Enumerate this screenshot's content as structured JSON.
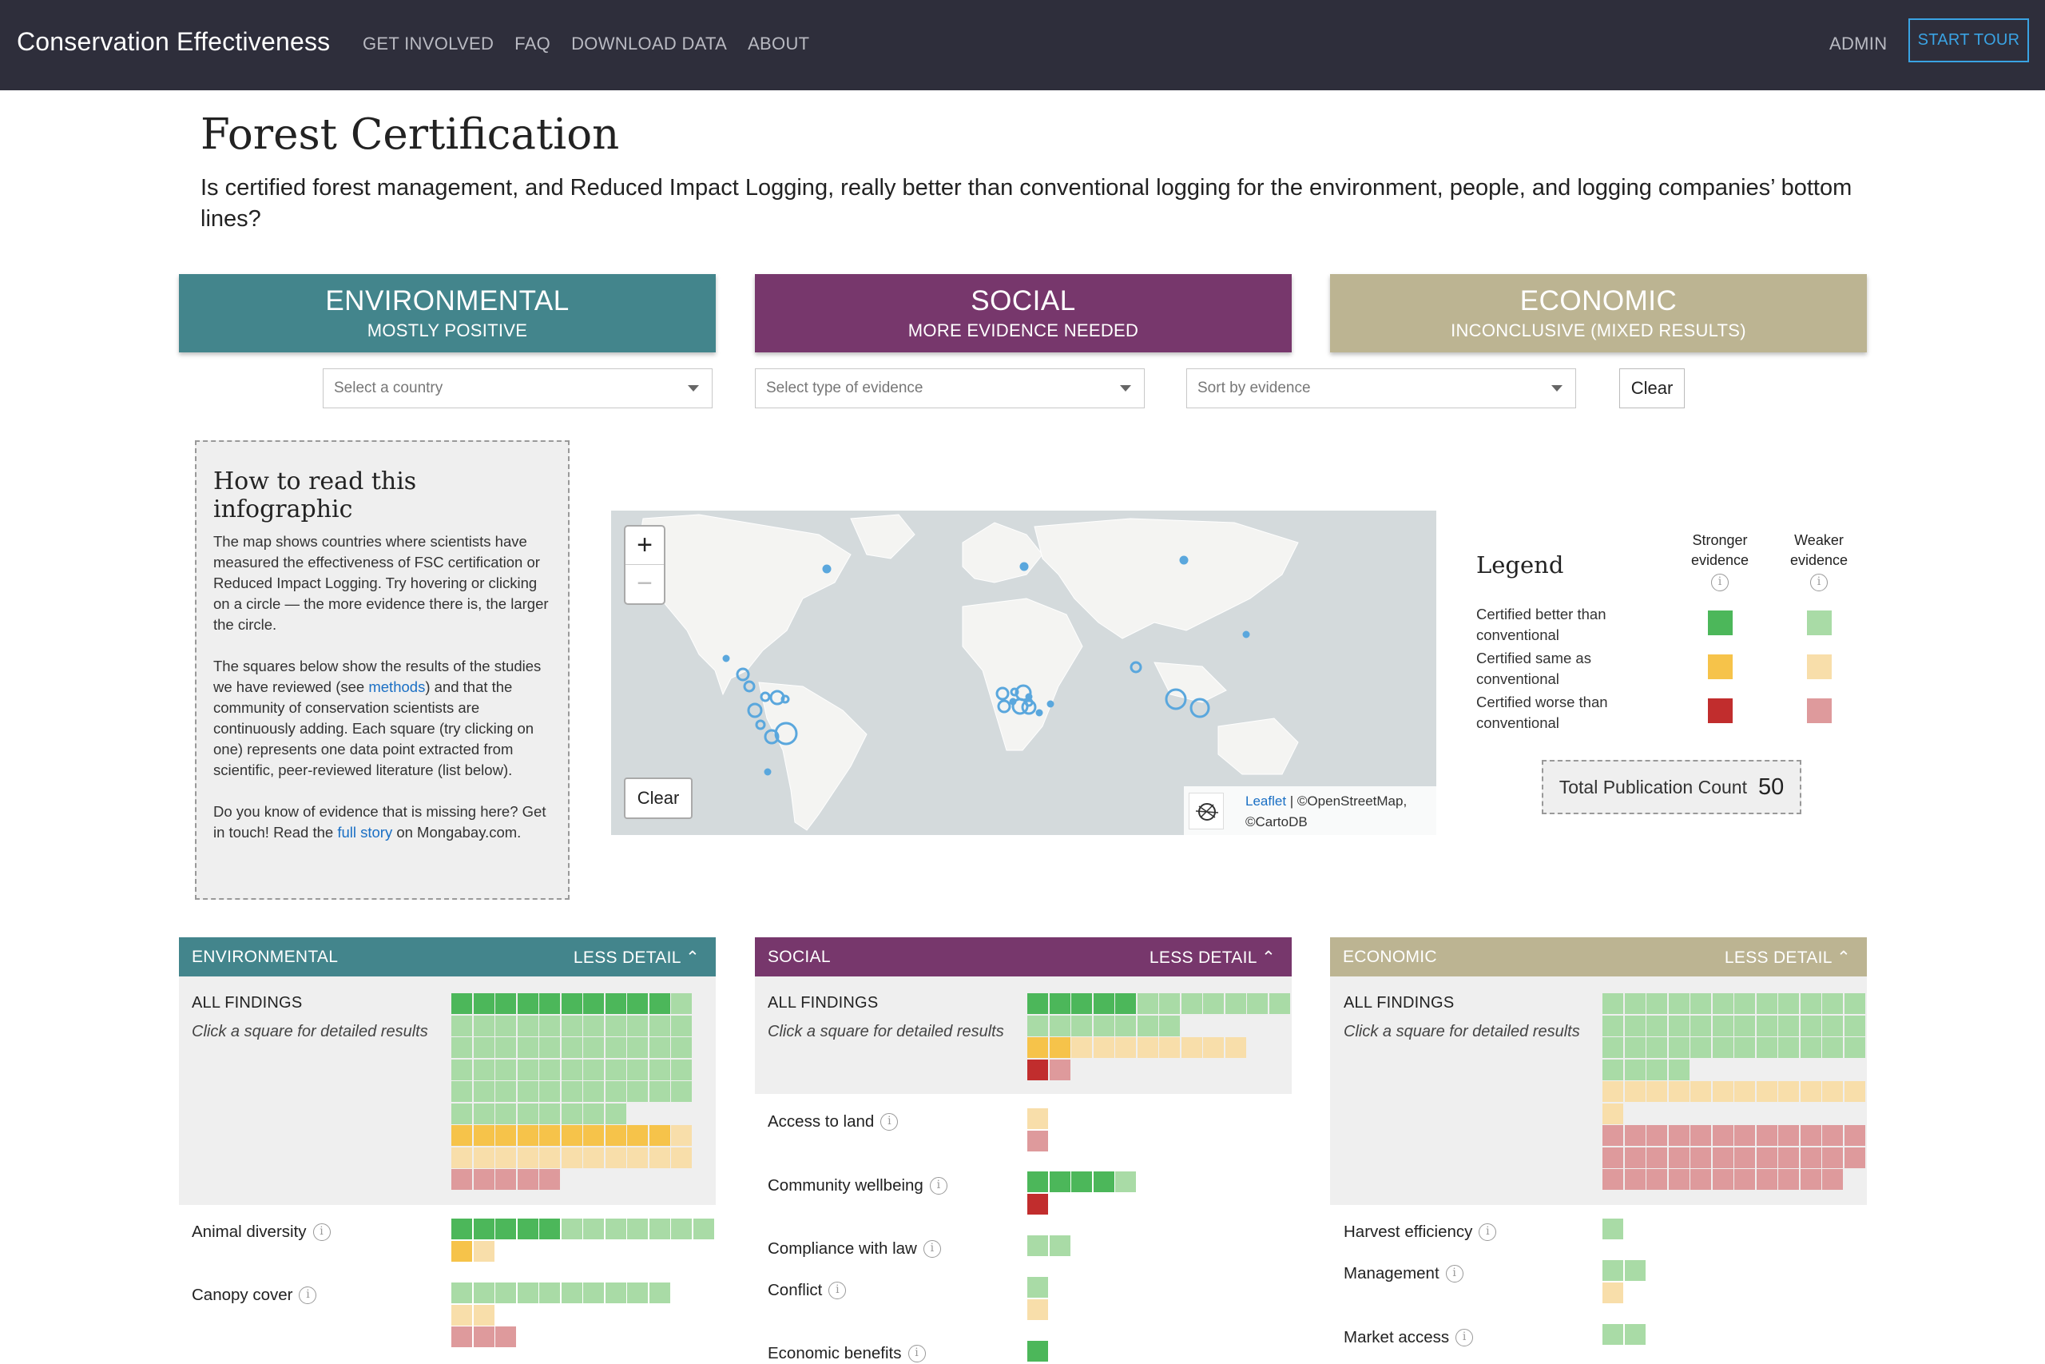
{
  "nav": {
    "brand": "Conservation Effectiveness",
    "links": [
      "GET INVOLVED",
      "FAQ",
      "DOWNLOAD DATA",
      "ABOUT"
    ],
    "admin": "ADMIN",
    "start_tour": "START TOUR"
  },
  "header": {
    "title": "Forest Certification",
    "subtitle": "Is certified forest management, and Reduced Impact Logging, really better than conventional logging for the environment, people, and logging companies’ bottom lines?"
  },
  "categories": [
    {
      "title": "ENVIRONMENTAL",
      "verdict": "MOSTLY POSITIVE",
      "color": "#43858c"
    },
    {
      "title": "SOCIAL",
      "verdict": "MORE EVIDENCE NEEDED",
      "color": "#77376c"
    },
    {
      "title": "ECONOMIC",
      "verdict": "INCONCLUSIVE (MIXED RESULTS)",
      "color": "#bcb492"
    }
  ],
  "filters": {
    "country_placeholder": "Select a country",
    "evidence_placeholder": "Select type of evidence",
    "sort_placeholder": "Sort by evidence",
    "clear": "Clear"
  },
  "howto": {
    "title": "How to read this infographic",
    "p1": "The map shows countries where scientists have measured the effectiveness of FSC certification or Reduced Impact Logging. Try hovering or clicking on a circle — the more evidence there is, the larger the circle.",
    "p2_a": "The squares below show the results of the studies we have reviewed (see ",
    "p2_link": "methods",
    "p2_b": ") and that the community of conservation scientists are continuously adding. Each square (try clicking on one) represents one data point extracted from scientific, peer-reviewed literature (list below).",
    "p3_a": "Do you know of evidence that is missing here? Get in touch! Read the ",
    "p3_link": "full story",
    "p3_b": " on Mongabay.com."
  },
  "map": {
    "zoom_in": "+",
    "zoom_out": "−",
    "clear": "Clear",
    "attribution_link": "Leaflet",
    "attribution_text": " | ©OpenStreetMap, ©CartoDB",
    "marker_color": "#5aa7dd"
  },
  "legend": {
    "title": "Legend",
    "stronger": "Stronger evidence",
    "weaker": "Weaker evidence",
    "rows": [
      {
        "label": "Certified better than conventional",
        "strong": "#4cb75a",
        "weak": "#a9dba6"
      },
      {
        "label": "Certified same as conventional",
        "strong": "#f6c34a",
        "weak": "#f8deaa"
      },
      {
        "label": "Certified worse than conventional",
        "strong": "#c12d2d",
        "weak": "#de9a9c"
      }
    ],
    "total_label": "Total Publication Count",
    "total_value": "50"
  },
  "colors": {
    "strong_better": "#4cb75a",
    "weak_better": "#a9dba6",
    "strong_same": "#f6c34a",
    "weak_same": "#f8deaa",
    "strong_worse": "#c12d2d",
    "weak_worse": "#de9a9c"
  },
  "panels": [
    {
      "title": "ENVIRONMENTAL",
      "toggle": "LESS DETAIL",
      "all_findings": "ALL FINDINGS",
      "hint": "Click a square for detailed results",
      "outcomes": [
        {
          "label": "Animal diversity"
        },
        {
          "label": "Canopy cover"
        }
      ]
    },
    {
      "title": "SOCIAL",
      "toggle": "LESS DETAIL",
      "all_findings": "ALL FINDINGS",
      "hint": "Click a square for detailed results",
      "outcomes": [
        {
          "label": "Access to land"
        },
        {
          "label": "Community wellbeing"
        },
        {
          "label": "Compliance with law"
        },
        {
          "label": "Conflict"
        },
        {
          "label": "Economic benefits"
        }
      ]
    },
    {
      "title": "ECONOMIC",
      "toggle": "LESS DETAIL",
      "all_findings": "ALL FINDINGS",
      "hint": "Click a square for detailed results",
      "outcomes": [
        {
          "label": "Harvest efficiency"
        },
        {
          "label": "Management"
        },
        {
          "label": "Market access"
        }
      ]
    }
  ]
}
